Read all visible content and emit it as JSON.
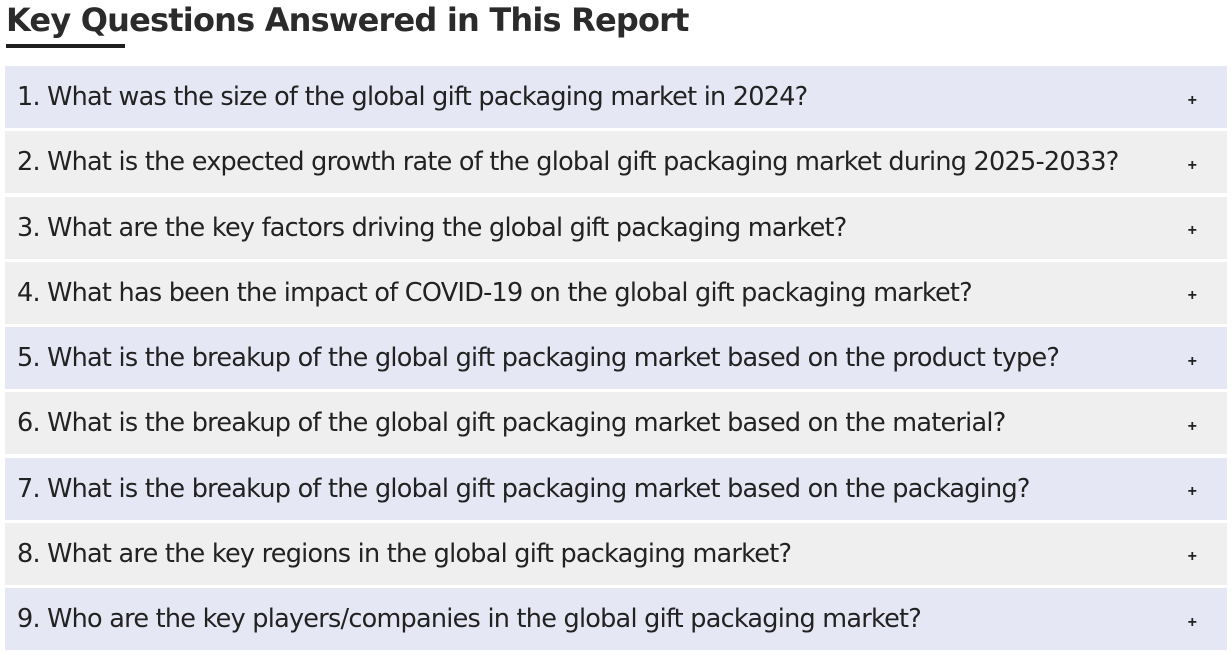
{
  "heading": {
    "title": "Key Questions Answered in This Report"
  },
  "faq": {
    "toggle_icon": "plus-icon",
    "colors": {
      "row_tint": "#e6e7f4",
      "row_gray": "#efefef",
      "text": "#222222"
    },
    "items": [
      {
        "question": "1. What was the size of the global gift packaging market in 2024?",
        "toggle": "+"
      },
      {
        "question": "2. What is the expected growth rate of the global gift packaging market during 2025-2033?",
        "toggle": "+"
      },
      {
        "question": "3. What are the key factors driving the global gift packaging market?",
        "toggle": "+"
      },
      {
        "question": "4. What has been the impact of COVID-19 on the global gift packaging market?",
        "toggle": "+"
      },
      {
        "question": "5. What is the breakup of the global gift packaging market based on the product type?",
        "toggle": "+"
      },
      {
        "question": "6. What is the breakup of the global gift packaging market based on the material?",
        "toggle": "+"
      },
      {
        "question": "7. What is the breakup of the global gift packaging market based on the packaging?",
        "toggle": "+"
      },
      {
        "question": "8. What are the key regions in the global gift packaging market?",
        "toggle": "+"
      },
      {
        "question": "9. Who are the key players/companies in the global gift packaging market?",
        "toggle": "+"
      }
    ]
  }
}
